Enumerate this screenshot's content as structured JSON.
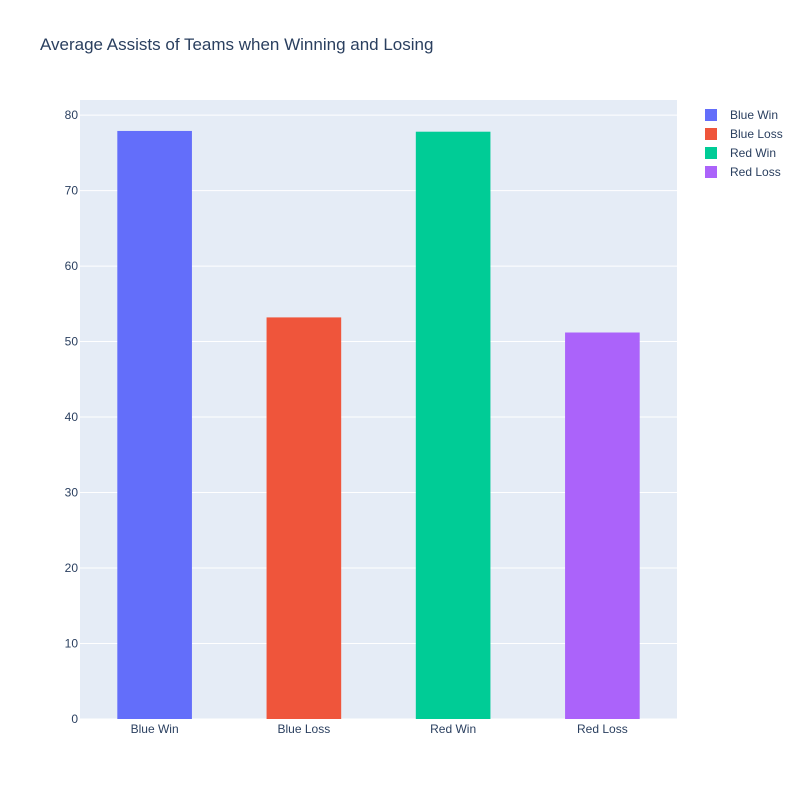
{
  "chart_data": {
    "type": "bar",
    "title": "Average Assists of Teams when Winning and Losing",
    "xlabel": "",
    "ylabel": "",
    "categories": [
      "Blue Win",
      "Blue Loss",
      "Red Win",
      "Red Loss"
    ],
    "series": [
      {
        "name": "Blue Win",
        "color": "#636efa",
        "values": [
          77.9,
          null,
          null,
          null
        ]
      },
      {
        "name": "Blue Loss",
        "color": "#ef553b",
        "values": [
          null,
          53.2,
          null,
          null
        ]
      },
      {
        "name": "Red Win",
        "color": "#00cc96",
        "values": [
          null,
          null,
          77.8,
          null
        ]
      },
      {
        "name": "Red Loss",
        "color": "#ab63fa",
        "values": [
          null,
          null,
          null,
          51.2
        ]
      }
    ],
    "ylim": [
      0,
      82
    ],
    "yticks": [
      0,
      10,
      20,
      30,
      40,
      50,
      60,
      70,
      80
    ],
    "grid": true,
    "legend_position": "top-right",
    "plot_background": "#e5ecf6"
  }
}
